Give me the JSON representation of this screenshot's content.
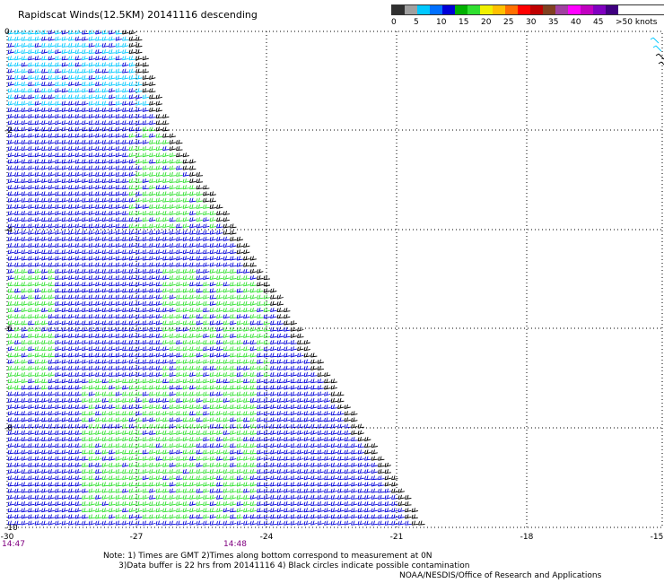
{
  "title": "Rapidscat Winds(12.5KM) 20141116 descending",
  "speed_scale": {
    "colors": [
      "#303030",
      "#a0a0a0",
      "#00c8ff",
      "#0070ff",
      "#0000d8",
      "#00b000",
      "#30e030",
      "#f0f000",
      "#ffc000",
      "#ff7000",
      "#ff0000",
      "#c00000",
      "#804020",
      "#a040a0",
      "#ff00ff",
      "#c000c0",
      "#8000c0",
      "#400080"
    ],
    "labels": [
      "0",
      "5",
      "10",
      "15",
      "20",
      "25",
      "30",
      "35",
      "40",
      "45",
      ">50 knots"
    ]
  },
  "x_ticks": [
    "-30",
    "-27",
    "-24",
    "-21",
    "-18",
    "-15"
  ],
  "y_ticks": [
    "0",
    "-2",
    "-4",
    "-6",
    "-8",
    "-10"
  ],
  "times": [
    "14:47",
    "14:48"
  ],
  "notes": [
    "Note: 1) Times are GMT 2)Times along bottom correspond to measurement at 0N",
    "      3)Data buffer is 22 hrs from 20141116 4) Black circles indicate possible contamination"
  ],
  "credit": "NOAA/NESDIS/Office of Research and Applications",
  "colors": {
    "slow": "#0000d8",
    "fast": "#30e030",
    "light": "#00c8ff",
    "edge": "#000000",
    "time": "#800080",
    "grid": "#000000"
  }
}
